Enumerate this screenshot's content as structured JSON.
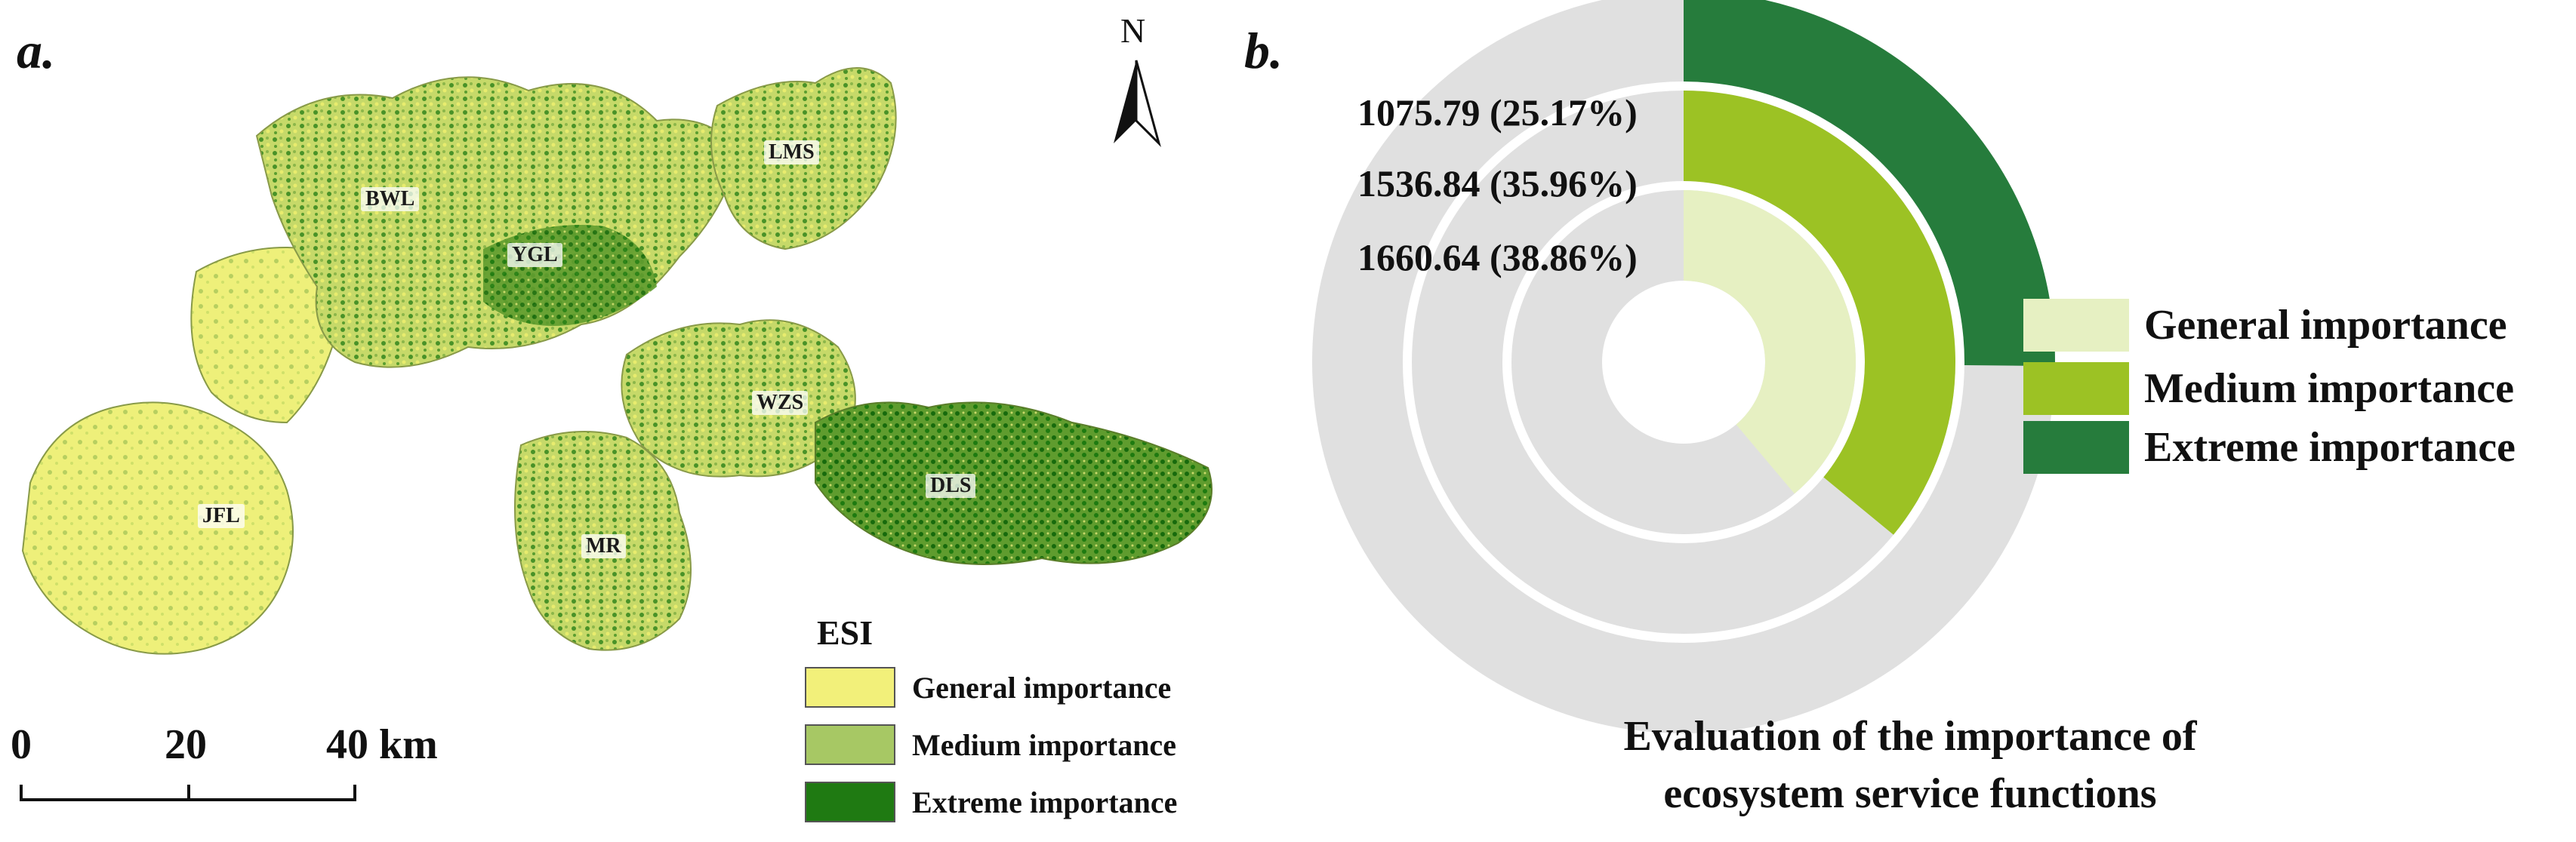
{
  "panel_a": {
    "letter": "a.",
    "north_label": "N",
    "place_labels": [
      "BWL",
      "LMS",
      "YGL",
      "WZS",
      "DLS",
      "JFL",
      "MR"
    ],
    "legend": {
      "title": "ESI",
      "items": [
        {
          "label": "General importance",
          "color": "#f2f07a"
        },
        {
          "label": "Medium importance",
          "color": "#a7c864"
        },
        {
          "label": "Extreme importance",
          "color": "#1f7a12"
        }
      ]
    },
    "scale_bar": {
      "ticks": [
        "0",
        "20",
        "40 km"
      ]
    }
  },
  "panel_b": {
    "letter": "b.",
    "title_line1": "Evaluation of the importance of",
    "title_line2": "ecosystem service functions",
    "legend": [
      {
        "label": "General importance",
        "color": "#e6f0c2"
      },
      {
        "label": "Medium importance",
        "color": "#9cc224"
      },
      {
        "label": "Extreme importance",
        "color": "#267c3c"
      }
    ],
    "ring_labels": [
      "1075.79 (25.17%)",
      "1536.84 (35.96%)",
      "1660.64 (38.86%)"
    ]
  },
  "chart_data": {
    "type": "pie",
    "subtype": "radial-ring",
    "title": "Evaluation of the importance of ecosystem service functions",
    "categories": [
      "General importance",
      "Medium importance",
      "Extreme importance"
    ],
    "values": [
      1660.64,
      1536.84,
      1075.79
    ],
    "percents": [
      38.86,
      35.96,
      25.17
    ],
    "colors": [
      "#e6f0c2",
      "#9cc224",
      "#267c3c"
    ],
    "track_color": "#e0e0e0",
    "legend_position": "right"
  }
}
